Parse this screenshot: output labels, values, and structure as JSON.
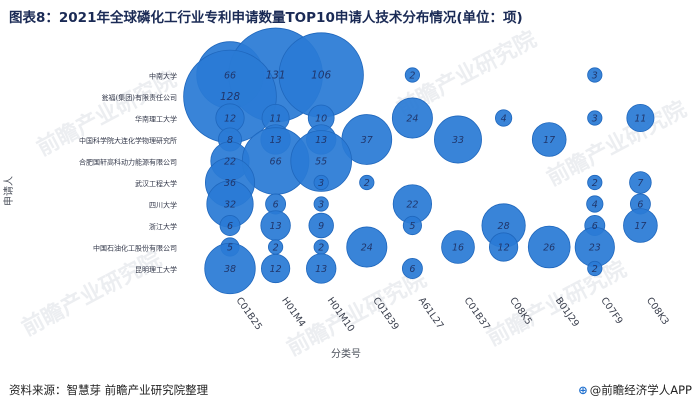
{
  "title": "图表8：2021年全球磷化工行业专利申请数量TOP10申请人技术分布情况(单位：项)",
  "footer": {
    "source": "资料来源：智慧芽 前瞻产业研究院整理",
    "credit": "@前瞻经济学人APP"
  },
  "watermark": "前瞻产业研究院",
  "colors": {
    "bubble": "#2a7bd5",
    "bubble_edge": "#1f67bd",
    "label": "#20366b",
    "gridline": "#d9dde3"
  },
  "chart_data": {
    "type": "scatter",
    "title": "图表8：2021年全球磷化工行业专利申请数量TOP10申请人技术分布情况(单位：项)",
    "xlabel": "分类号",
    "ylabel": "申请人",
    "categories": [
      "C01B25",
      "H01M4",
      "H01M10",
      "C01B39",
      "A61L27",
      "C01B37",
      "C08K5",
      "B01J29",
      "C07F9",
      "C08K3"
    ],
    "applicants": [
      "中南大学",
      "瓮福(集团)有限责任公司",
      "华南理工大学",
      "中国科学院大连化学物理研究所",
      "合肥国轩高科动力能源有限公司",
      "武汉工程大学",
      "四川大学",
      "浙江大学",
      "中国石油化工股份有限公司",
      "昆明理工大学"
    ],
    "points": [
      {
        "applicant": "中南大学",
        "code": "C01B25",
        "value": 66
      },
      {
        "applicant": "中南大学",
        "code": "H01M4",
        "value": 131
      },
      {
        "applicant": "中南大学",
        "code": "H01M10",
        "value": 106
      },
      {
        "applicant": "中南大学",
        "code": "A61L27",
        "value": 2
      },
      {
        "applicant": "中南大学",
        "code": "C07F9",
        "value": 3
      },
      {
        "applicant": "瓮福(集团)有限责任公司",
        "code": "C01B25",
        "value": 128
      },
      {
        "applicant": "华南理工大学",
        "code": "C01B25",
        "value": 12
      },
      {
        "applicant": "华南理工大学",
        "code": "H01M4",
        "value": 11
      },
      {
        "applicant": "华南理工大学",
        "code": "H01M10",
        "value": 10
      },
      {
        "applicant": "华南理工大学",
        "code": "A61L27",
        "value": 24
      },
      {
        "applicant": "华南理工大学",
        "code": "C08K5",
        "value": 4
      },
      {
        "applicant": "华南理工大学",
        "code": "C07F9",
        "value": 3
      },
      {
        "applicant": "华南理工大学",
        "code": "C08K3",
        "value": 11
      },
      {
        "applicant": "中国科学院大连化学物理研究所",
        "code": "C01B25",
        "value": 8
      },
      {
        "applicant": "中国科学院大连化学物理研究所",
        "code": "H01M4",
        "value": 13
      },
      {
        "applicant": "中国科学院大连化学物理研究所",
        "code": "H01M10",
        "value": 13
      },
      {
        "applicant": "中国科学院大连化学物理研究所",
        "code": "C01B39",
        "value": 37
      },
      {
        "applicant": "中国科学院大连化学物理研究所",
        "code": "C01B37",
        "value": 33
      },
      {
        "applicant": "中国科学院大连化学物理研究所",
        "code": "B01J29",
        "value": 17
      },
      {
        "applicant": "合肥国轩高科动力能源有限公司",
        "code": "C01B25",
        "value": 22
      },
      {
        "applicant": "合肥国轩高科动力能源有限公司",
        "code": "H01M4",
        "value": 66
      },
      {
        "applicant": "合肥国轩高科动力能源有限公司",
        "code": "H01M10",
        "value": 55
      },
      {
        "applicant": "武汉工程大学",
        "code": "C01B25",
        "value": 36
      },
      {
        "applicant": "武汉工程大学",
        "code": "H01M10",
        "value": 3
      },
      {
        "applicant": "武汉工程大学",
        "code": "C01B39",
        "value": 2
      },
      {
        "applicant": "武汉工程大学",
        "code": "C07F9",
        "value": 2
      },
      {
        "applicant": "武汉工程大学",
        "code": "C08K3",
        "value": 7
      },
      {
        "applicant": "四川大学",
        "code": "C01B25",
        "value": 32
      },
      {
        "applicant": "四川大学",
        "code": "H01M4",
        "value": 6
      },
      {
        "applicant": "四川大学",
        "code": "H01M10",
        "value": 3
      },
      {
        "applicant": "四川大学",
        "code": "A61L27",
        "value": 22
      },
      {
        "applicant": "四川大学",
        "code": "C07F9",
        "value": 4
      },
      {
        "applicant": "四川大学",
        "code": "C08K3",
        "value": 6
      },
      {
        "applicant": "浙江大学",
        "code": "C01B25",
        "value": 6
      },
      {
        "applicant": "浙江大学",
        "code": "H01M4",
        "value": 13
      },
      {
        "applicant": "浙江大学",
        "code": "H01M10",
        "value": 9
      },
      {
        "applicant": "浙江大学",
        "code": "A61L27",
        "value": 5
      },
      {
        "applicant": "浙江大学",
        "code": "C08K5",
        "value": 28
      },
      {
        "applicant": "浙江大学",
        "code": "C07F9",
        "value": 6
      },
      {
        "applicant": "浙江大学",
        "code": "C08K3",
        "value": 17
      },
      {
        "applicant": "中国石油化工股份有限公司",
        "code": "C01B25",
        "value": 5
      },
      {
        "applicant": "中国石油化工股份有限公司",
        "code": "H01M4",
        "value": 2
      },
      {
        "applicant": "中国石油化工股份有限公司",
        "code": "H01M10",
        "value": 2
      },
      {
        "applicant": "中国石油化工股份有限公司",
        "code": "C01B39",
        "value": 24
      },
      {
        "applicant": "中国石油化工股份有限公司",
        "code": "C01B37",
        "value": 16
      },
      {
        "applicant": "中国石油化工股份有限公司",
        "code": "C08K5",
        "value": 12
      },
      {
        "applicant": "中国石油化工股份有限公司",
        "code": "B01J29",
        "value": 26
      },
      {
        "applicant": "中国石油化工股份有限公司",
        "code": "C07F9",
        "value": 23
      },
      {
        "applicant": "昆明理工大学",
        "code": "C01B25",
        "value": 38
      },
      {
        "applicant": "昆明理工大学",
        "code": "H01M4",
        "value": 12
      },
      {
        "applicant": "昆明理工大学",
        "code": "H01M10",
        "value": 13
      },
      {
        "applicant": "昆明理工大学",
        "code": "A61L27",
        "value": 6
      },
      {
        "applicant": "昆明理工大学",
        "code": "C07F9",
        "value": 2
      }
    ]
  }
}
